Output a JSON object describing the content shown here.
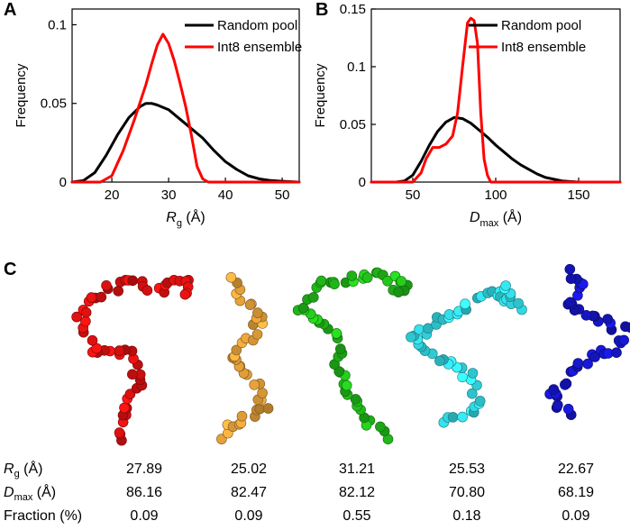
{
  "panels": {
    "a": "A",
    "b": "B",
    "c": "C"
  },
  "chart_data": [
    {
      "type": "line",
      "panel": "A",
      "ylabel": "Frequency",
      "xlabel_symbol": "R",
      "xlabel_sub": "g",
      "xlabel_unit": " (Å)",
      "xlim": [
        13,
        53
      ],
      "ylim": [
        0,
        0.11
      ],
      "xticks": [
        20,
        30,
        40,
        50
      ],
      "xtick_labels": [
        "20",
        "30",
        "40",
        "50"
      ],
      "yticks": [
        0,
        0.05,
        0.1
      ],
      "ytick_labels": [
        "0",
        "0.05",
        "0.1"
      ],
      "legend_position": "top-right",
      "series": [
        {
          "name": "Random pool",
          "color": "#000000",
          "x": [
            13,
            15,
            17,
            19,
            21,
            23,
            25,
            26,
            27,
            28,
            30,
            32,
            34,
            36,
            38,
            40,
            42,
            44,
            46,
            48,
            50,
            53
          ],
          "y": [
            0,
            0.001,
            0.006,
            0.017,
            0.03,
            0.041,
            0.048,
            0.05,
            0.05,
            0.049,
            0.046,
            0.04,
            0.034,
            0.028,
            0.02,
            0.013,
            0.008,
            0.004,
            0.002,
            0.001,
            0.0005,
            0
          ]
        },
        {
          "name": "Int8 ensemble",
          "color": "#ff0000",
          "x": [
            13,
            18,
            20,
            22,
            24,
            26,
            27,
            28,
            29,
            30,
            31,
            32,
            33,
            34,
            35,
            36,
            37,
            40,
            53
          ],
          "y": [
            0,
            0,
            0.004,
            0.02,
            0.04,
            0.062,
            0.075,
            0.087,
            0.094,
            0.088,
            0.077,
            0.063,
            0.048,
            0.03,
            0.01,
            0.002,
            0,
            0,
            0
          ]
        }
      ]
    },
    {
      "type": "line",
      "panel": "B",
      "ylabel": "Frequency",
      "xlabel_symbol": "D",
      "xlabel_sub": "max",
      "xlabel_unit": " (Å)",
      "xlim": [
        25,
        175
      ],
      "ylim": [
        0,
        0.15
      ],
      "xticks": [
        50,
        100,
        150
      ],
      "xtick_labels": [
        "50",
        "100",
        "150"
      ],
      "yticks": [
        0,
        0.05,
        0.1,
        0.15
      ],
      "ytick_labels": [
        "0",
        "0.05",
        "0.1",
        "0.15"
      ],
      "legend_position": "top-right",
      "series": [
        {
          "name": "Random pool",
          "color": "#000000",
          "x": [
            25,
            40,
            45,
            50,
            55,
            60,
            65,
            70,
            75,
            80,
            85,
            90,
            95,
            100,
            105,
            110,
            115,
            120,
            125,
            130,
            140,
            150,
            175
          ],
          "y": [
            0,
            0,
            0.001,
            0.006,
            0.018,
            0.032,
            0.044,
            0.052,
            0.056,
            0.055,
            0.051,
            0.045,
            0.039,
            0.032,
            0.026,
            0.02,
            0.015,
            0.011,
            0.007,
            0.004,
            0.001,
            0,
            0
          ]
        },
        {
          "name": "Int8 ensemble",
          "color": "#ff0000",
          "x": [
            25,
            50,
            55,
            58,
            62,
            66,
            70,
            74,
            77,
            80,
            83,
            85,
            87,
            89,
            91,
            93,
            95,
            97,
            100,
            175
          ],
          "y": [
            0,
            0,
            0.008,
            0.02,
            0.03,
            0.03,
            0.033,
            0.04,
            0.06,
            0.1,
            0.138,
            0.142,
            0.14,
            0.12,
            0.06,
            0.02,
            0.006,
            0,
            0,
            0
          ]
        }
      ]
    }
  ],
  "structures": [
    {
      "name": "red",
      "color": "#dd1111"
    },
    {
      "name": "orange",
      "color": "#e6a23a"
    },
    {
      "name": "green",
      "color": "#22c01a"
    },
    {
      "name": "cyan",
      "color": "#33dde8"
    },
    {
      "name": "blue",
      "color": "#1616c8"
    }
  ],
  "table": {
    "rows": [
      {
        "symbol": "R",
        "sub": "g",
        "unit": " (Å)",
        "values": [
          "27.89",
          "25.02",
          "31.21",
          "25.53",
          "22.67"
        ]
      },
      {
        "symbol": "D",
        "sub": "max",
        "unit": " (Å)",
        "values": [
          "86.16",
          "82.47",
          "82.12",
          "70.80",
          "68.19"
        ]
      },
      {
        "label": "Fraction (%)",
        "values": [
          "0.09",
          "0.09",
          "0.55",
          "0.18",
          "0.09"
        ]
      }
    ]
  }
}
